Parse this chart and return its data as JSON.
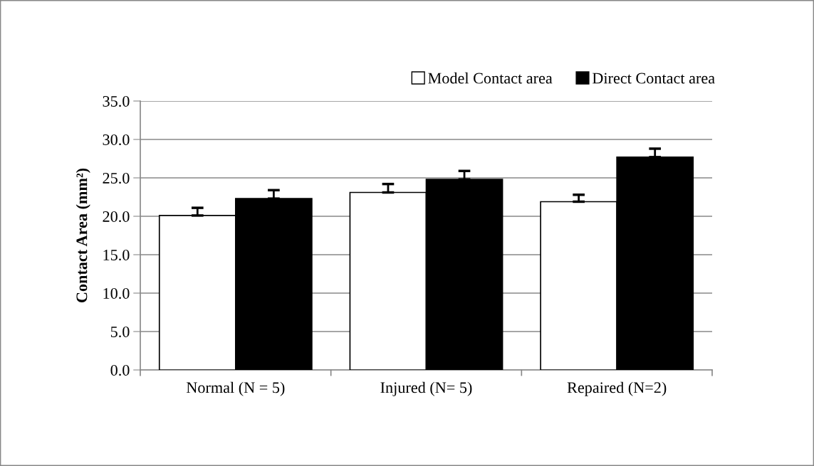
{
  "chart_data": {
    "type": "bar",
    "ylabel": "Contact Area (mm²)",
    "categories": [
      "Normal (N = 5)",
      "Injured (N= 5)",
      "Repaired (N=2)"
    ],
    "series": [
      {
        "name": "Model Contact area",
        "color": "#ffffff",
        "values": [
          20.1,
          23.1,
          21.9
        ],
        "errors": [
          [
            20.1,
            21.1
          ],
          [
            23.1,
            24.2
          ],
          [
            21.9,
            22.8
          ]
        ]
      },
      {
        "name": "Direct Contact area",
        "color": "#000000",
        "values": [
          22.3,
          24.8,
          27.7
        ],
        "errors": [
          [
            22.3,
            23.4
          ],
          [
            24.8,
            25.9
          ],
          [
            27.7,
            28.8
          ]
        ]
      }
    ],
    "ylim": [
      0,
      35
    ],
    "yticks": [
      {
        "value": 0,
        "label": "0.0"
      },
      {
        "value": 5,
        "label": "5.0"
      },
      {
        "value": 10,
        "label": "10.0"
      },
      {
        "value": 15,
        "label": "15.0"
      },
      {
        "value": 20,
        "label": "20.0"
      },
      {
        "value": 25,
        "label": "25.0"
      },
      {
        "value": 30,
        "label": "30.0"
      },
      {
        "value": 35,
        "label": "35.0"
      }
    ],
    "grid": "y",
    "legend": "top right"
  }
}
